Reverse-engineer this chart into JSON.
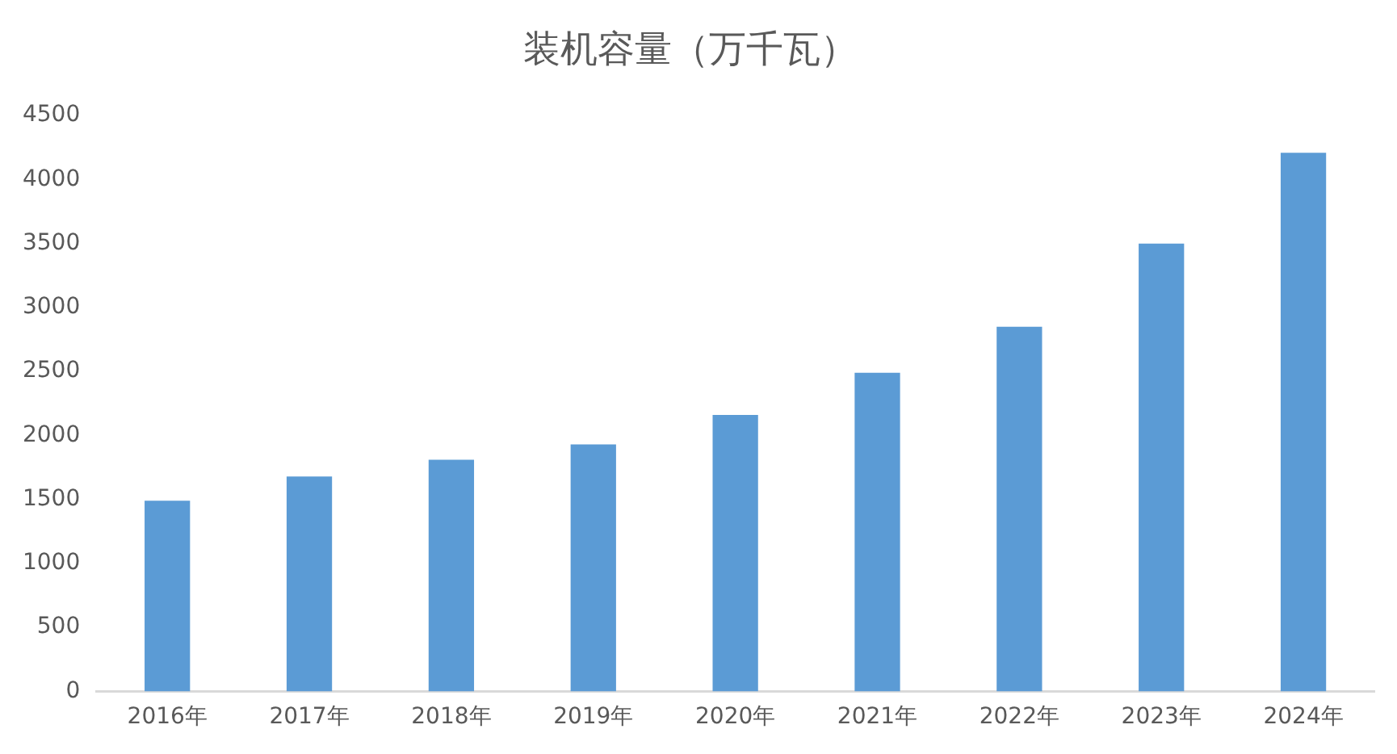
{
  "chart_data": {
    "type": "bar",
    "title": "装机容量（万千瓦）",
    "categories": [
      "2016年",
      "2017年",
      "2018年",
      "2019年",
      "2020年",
      "2021年",
      "2022年",
      "2023年",
      "2024年"
    ],
    "values": [
      1490,
      1680,
      1810,
      1930,
      2160,
      2490,
      2850,
      3500,
      4210
    ],
    "color": "#5b9bd5",
    "ylim": [
      0,
      4500
    ],
    "yticks": [
      0,
      500,
      1000,
      1500,
      2000,
      2500,
      3000,
      3500,
      4000,
      4500
    ],
    "grid": false
  }
}
